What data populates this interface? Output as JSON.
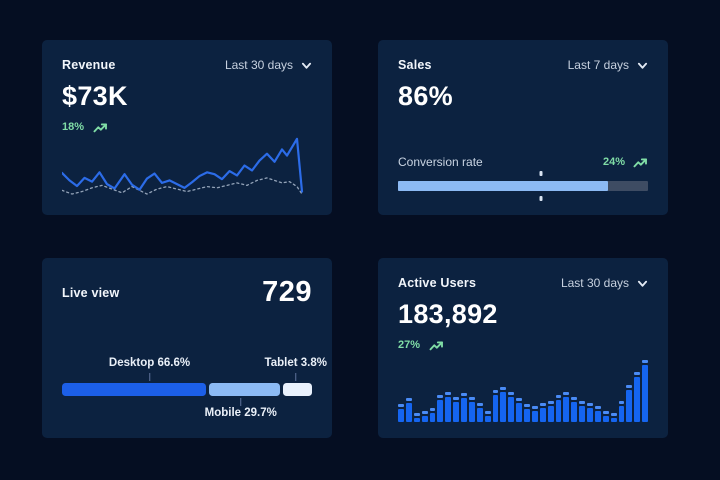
{
  "page": {
    "background": "#050E22",
    "card_background": "#0C2240"
  },
  "colors": {
    "positive": "#80DDA6",
    "title": "#F2F6FB",
    "muted": "#C7D1DF"
  },
  "cards": {
    "revenue": {
      "title": "Revenue",
      "range": "Last 30 days",
      "value": "$73K",
      "delta": "18%",
      "chart_data": {
        "type": "line",
        "legend": false,
        "series": [
          {
            "name": "current",
            "color": "#2C6CE8",
            "width": 2.2,
            "dash": "",
            "points": [
              [
                0,
                58
              ],
              [
                3,
                70
              ],
              [
                6,
                79
              ],
              [
                9,
                66
              ],
              [
                12,
                72
              ],
              [
                15,
                57
              ],
              [
                18,
                76
              ],
              [
                21,
                83
              ],
              [
                25,
                60
              ],
              [
                28,
                77
              ],
              [
                31,
                85
              ],
              [
                34,
                67
              ],
              [
                37,
                59
              ],
              [
                40,
                74
              ],
              [
                43,
                70
              ],
              [
                46,
                76
              ],
              [
                49,
                82
              ],
              [
                52,
                73
              ],
              [
                55,
                63
              ],
              [
                58,
                57
              ],
              [
                61,
                60
              ],
              [
                64,
                68
              ],
              [
                67,
                55
              ],
              [
                70,
                62
              ],
              [
                73,
                46
              ],
              [
                76,
                54
              ],
              [
                79,
                38
              ],
              [
                82,
                27
              ],
              [
                85,
                40
              ],
              [
                88,
                20
              ],
              [
                90,
                30
              ],
              [
                94,
                3
              ],
              [
                96,
                88
              ]
            ]
          },
          {
            "name": "previous",
            "color": "#93A3B8",
            "width": 1.3,
            "dash": "2,3",
            "points": [
              [
                0,
                86
              ],
              [
                4,
                92
              ],
              [
                8,
                88
              ],
              [
                12,
                82
              ],
              [
                16,
                78
              ],
              [
                20,
                84
              ],
              [
                24,
                90
              ],
              [
                28,
                80
              ],
              [
                31,
                86
              ],
              [
                34,
                92
              ],
              [
                38,
                84
              ],
              [
                42,
                80
              ],
              [
                46,
                84
              ],
              [
                50,
                88
              ],
              [
                54,
                84
              ],
              [
                58,
                80
              ],
              [
                62,
                82
              ],
              [
                66,
                78
              ],
              [
                70,
                74
              ],
              [
                74,
                78
              ],
              [
                78,
                70
              ],
              [
                82,
                66
              ],
              [
                85,
                70
              ],
              [
                88,
                74
              ],
              [
                91,
                72
              ],
              [
                94,
                80
              ],
              [
                96,
                92
              ]
            ]
          }
        ]
      }
    },
    "sales": {
      "title": "Sales",
      "range": "Last 7 days",
      "value": "86%",
      "metric_label": "Conversion rate",
      "delta": "24%",
      "chart_data": {
        "type": "progress",
        "fill_pct": 84,
        "marker_pct": 57,
        "fill_color": "#8CBAF4",
        "track_color": "#3E4C63"
      }
    },
    "live_view": {
      "title": "Live view",
      "value": "729",
      "chart_data": {
        "type": "stacked-bar",
        "segments": [
          {
            "name": "Desktop",
            "label": "Desktop 66.6%",
            "value_pct": 66.6,
            "width_pct": 57.6,
            "color": "#1C5FE8",
            "label_side": "top",
            "label_center_pct": 35
          },
          {
            "name": "Mobile",
            "label": "Mobile 29.7%",
            "value_pct": 29.7,
            "width_pct": 28.4,
            "color": "#8CBAF4",
            "label_side": "bottom",
            "label_center_pct": 71.5
          },
          {
            "name": "Tablet",
            "label": "Tablet 3.8%",
            "value_pct": 3.8,
            "width_pct": 11.8,
            "color": "#E9F1FC",
            "label_side": "top",
            "label_center_pct": 93.5
          }
        ]
      }
    },
    "active_users": {
      "title": "Active Users",
      "range": "Last 30 days",
      "value": "183,892",
      "delta": "27%",
      "chart_data": {
        "type": "bar",
        "bar_color": "#1565F0",
        "cap_color": "#4A8BF5",
        "values": [
          29,
          38,
          14,
          17,
          22,
          43,
          48,
          40,
          47,
          40,
          31,
          17,
          52,
          57,
          48,
          38,
          29,
          26,
          31,
          34,
          43,
          48,
          40,
          34,
          31,
          26,
          17,
          14,
          34,
          60,
          81,
          100
        ]
      }
    }
  }
}
